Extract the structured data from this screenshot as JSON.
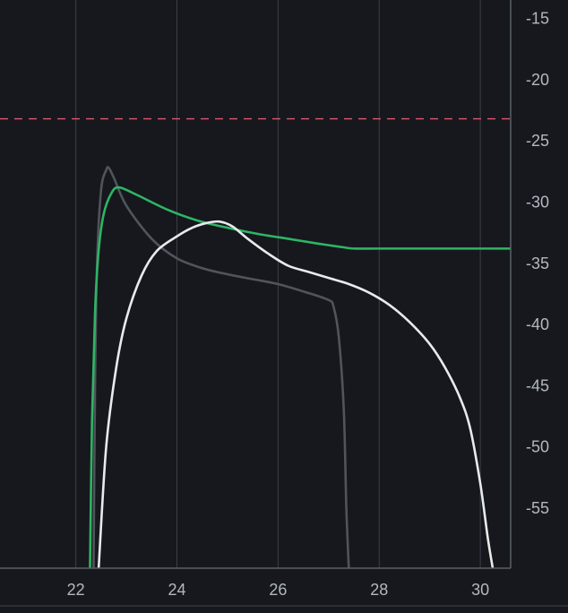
{
  "chart_data": {
    "type": "line",
    "title": "",
    "xlabel": "",
    "ylabel": "",
    "xlim": [
      20.5,
      30.6
    ],
    "ylim": [
      -59.9,
      -13.5
    ],
    "x_ticks": [
      22,
      24,
      26,
      28,
      30
    ],
    "x_tick_labels": [
      "22",
      "24",
      "26",
      "28",
      "30"
    ],
    "y_ticks": [
      -15,
      -20,
      -25,
      -30,
      -35,
      -40,
      -45,
      -50,
      -55
    ],
    "y_tick_labels": [
      "-15",
      "-20",
      "-25",
      "-30",
      "-35",
      "-40",
      "-45",
      "-50",
      "-55"
    ],
    "grid": {
      "vertical": true,
      "horizontal": false
    },
    "legend": "none",
    "colors": {
      "background": "#16181d",
      "grid": "#3a3f47",
      "axis": "#59606a",
      "tick_text": "#b3b8c0",
      "threshold": "#e0586b"
    },
    "threshold_line": {
      "y": -23.2,
      "color": "#e0586b",
      "style": "dashed"
    },
    "series": [
      {
        "color": "#50545b",
        "points": [
          [
            22.35,
            -60
          ],
          [
            22.38,
            -45
          ],
          [
            22.42,
            -35
          ],
          [
            22.5,
            -29
          ],
          [
            22.6,
            -27.4
          ],
          [
            22.65,
            -27.2
          ],
          [
            22.75,
            -28
          ],
          [
            23.0,
            -30.3
          ],
          [
            23.5,
            -33
          ],
          [
            24.0,
            -34.6
          ],
          [
            24.5,
            -35.4
          ],
          [
            25.0,
            -35.9
          ],
          [
            25.5,
            -36.3
          ],
          [
            26.0,
            -36.7
          ],
          [
            26.5,
            -37.3
          ],
          [
            27.0,
            -38.0
          ],
          [
            27.1,
            -38.6
          ],
          [
            27.2,
            -41
          ],
          [
            27.3,
            -47
          ],
          [
            27.35,
            -55
          ],
          [
            27.4,
            -60
          ]
        ]
      },
      {
        "color": "#2fb465",
        "points": [
          [
            22.28,
            -60
          ],
          [
            22.32,
            -48
          ],
          [
            22.38,
            -39
          ],
          [
            22.45,
            -34
          ],
          [
            22.55,
            -31
          ],
          [
            22.7,
            -29.3
          ],
          [
            22.85,
            -28.8
          ],
          [
            23.2,
            -29.4
          ],
          [
            23.8,
            -30.6
          ],
          [
            24.4,
            -31.5
          ],
          [
            25.0,
            -32.1
          ],
          [
            25.6,
            -32.6
          ],
          [
            26.2,
            -33.0
          ],
          [
            26.8,
            -33.4
          ],
          [
            27.3,
            -33.7
          ],
          [
            27.5,
            -33.8
          ],
          [
            28.0,
            -33.8
          ],
          [
            29.0,
            -33.8
          ],
          [
            30.0,
            -33.8
          ],
          [
            30.6,
            -33.8
          ]
        ]
      },
      {
        "color": "#e8eaec",
        "points": [
          [
            22.45,
            -60
          ],
          [
            22.6,
            -50
          ],
          [
            22.8,
            -43.5
          ],
          [
            23.0,
            -39.5
          ],
          [
            23.3,
            -36
          ],
          [
            23.6,
            -34
          ],
          [
            24.0,
            -32.8
          ],
          [
            24.3,
            -32.1
          ],
          [
            24.6,
            -31.7
          ],
          [
            24.85,
            -31.6
          ],
          [
            25.1,
            -32.0
          ],
          [
            25.4,
            -33.0
          ],
          [
            25.8,
            -34.2
          ],
          [
            26.2,
            -35.2
          ],
          [
            26.6,
            -35.7
          ],
          [
            27.0,
            -36.2
          ],
          [
            27.4,
            -36.7
          ],
          [
            27.8,
            -37.4
          ],
          [
            28.2,
            -38.4
          ],
          [
            28.6,
            -39.8
          ],
          [
            29.0,
            -41.6
          ],
          [
            29.3,
            -43.5
          ],
          [
            29.6,
            -46
          ],
          [
            29.8,
            -48.5
          ],
          [
            30.0,
            -53
          ],
          [
            30.15,
            -57.5
          ],
          [
            30.25,
            -60
          ]
        ]
      }
    ]
  }
}
